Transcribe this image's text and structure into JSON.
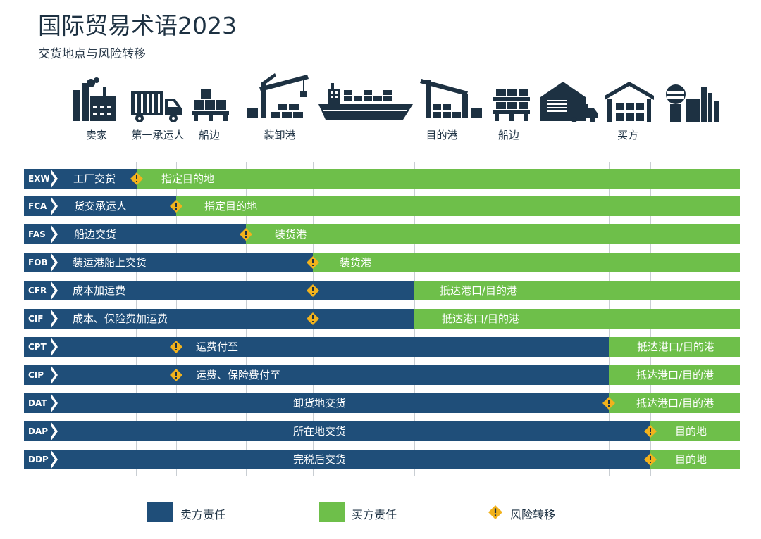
{
  "title": "国际贸易术语2023",
  "subtitle": "交货地点与风险转移",
  "colors": {
    "seller": "#1f4e79",
    "buyer": "#6ebf4a",
    "risk": "#f2b21c",
    "icon": "#1d3142"
  },
  "stages": [
    {
      "label": "卖家",
      "icon": "factory-icon"
    },
    {
      "label": "第一承运人",
      "icon": "truck-icon"
    },
    {
      "label": "船边",
      "icon": "cargo-boxes-icon"
    },
    {
      "label": "装卸港",
      "icon": "port-crane-icon"
    },
    {
      "label": "",
      "icon": "cargo-ship-icon"
    },
    {
      "label": "目的港",
      "icon": "port-crane-icon"
    },
    {
      "label": "船边",
      "icon": "cargo-boxes-icon"
    },
    {
      "label": "",
      "icon": "warehouse-truck-icon"
    },
    {
      "label": "买方",
      "icon": "warehouse-icon"
    },
    {
      "label": "",
      "icon": "factory-icon"
    }
  ],
  "terms": [
    {
      "code": "EXW",
      "seller_label": "工厂交货",
      "buyer_label": "指定目的地"
    },
    {
      "code": "FCA",
      "seller_label": "货交承运人",
      "buyer_label": "指定目的地"
    },
    {
      "code": "FAS",
      "seller_label": "船边交货",
      "buyer_label": "装货港"
    },
    {
      "code": "FOB",
      "seller_label": "装运港船上交货",
      "buyer_label": "装货港"
    },
    {
      "code": "CFR",
      "seller_label": "成本加运费",
      "buyer_label": "抵达港口/目的港"
    },
    {
      "code": "CIF",
      "seller_label": "成本、保险费加运费",
      "buyer_label": "抵达港口/目的港"
    },
    {
      "code": "CPT",
      "seller_label": "运费付至",
      "buyer_label": "抵达港口/目的港"
    },
    {
      "code": "CIP",
      "seller_label": "运费、保险费付至",
      "buyer_label": "抵达港口/目的港"
    },
    {
      "code": "DAT",
      "seller_label": "卸货地交货",
      "buyer_label": "抵达港口/目的港"
    },
    {
      "code": "DAP",
      "seller_label": "所在地交货",
      "buyer_label": "目的地"
    },
    {
      "code": "DDP",
      "seller_label": "完税后交货",
      "buyer_label": "目的地"
    }
  ],
  "legend": {
    "seller": "卖方责任",
    "buyer": "买方责任",
    "risk": "风险转移"
  }
}
